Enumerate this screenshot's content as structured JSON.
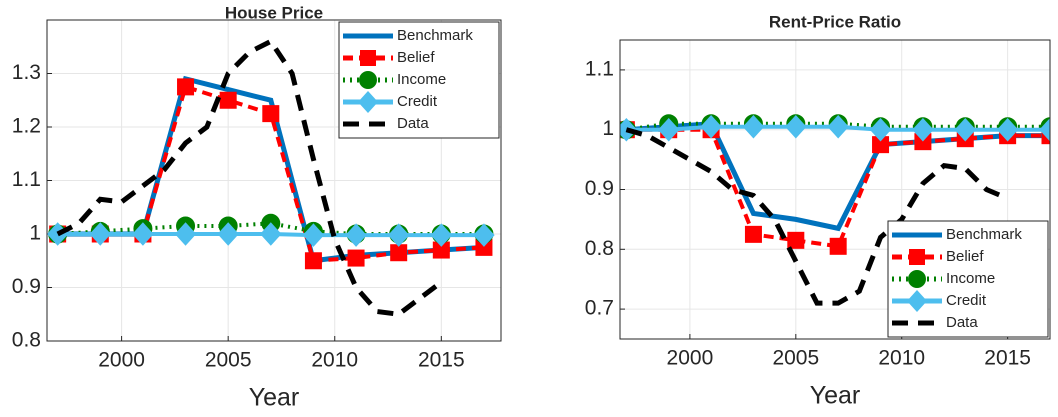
{
  "chart_data": [
    {
      "type": "line",
      "title": "House Price",
      "xlabel": "Year",
      "xlim": [
        1996.5,
        2017.8
      ],
      "xticks": [
        2000,
        2005,
        2010,
        2015
      ],
      "ylim": [
        0.8,
        1.4
      ],
      "yticks": [
        0.8,
        0.9,
        1,
        1.1,
        1.2,
        1.3
      ],
      "grid": true,
      "legend": "northeast",
      "series": [
        {
          "name": "Benchmark",
          "color": "#0072bd",
          "dash": "solid",
          "marker": "none",
          "x": [
            1997,
            1999,
            2001,
            2003,
            2005,
            2007,
            2009,
            2011,
            2013,
            2015,
            2017
          ],
          "values": [
            1.0,
            1.0,
            1.0,
            1.29,
            1.27,
            1.25,
            0.95,
            0.96,
            0.965,
            0.97,
            0.975
          ]
        },
        {
          "name": "Belief",
          "color": "#ff0000",
          "dash": "dashed",
          "marker": "square",
          "x": [
            1997,
            1999,
            2001,
            2003,
            2005,
            2007,
            2009,
            2011,
            2013,
            2015,
            2017
          ],
          "values": [
            1.0,
            1.0,
            1.0,
            1.275,
            1.25,
            1.225,
            0.95,
            0.955,
            0.965,
            0.97,
            0.975
          ]
        },
        {
          "name": "Income",
          "color": "#008000",
          "dash": "dotted",
          "marker": "circle",
          "x": [
            1997,
            1999,
            2001,
            2003,
            2005,
            2007,
            2009,
            2011,
            2013,
            2015,
            2017
          ],
          "values": [
            1.0,
            1.005,
            1.01,
            1.015,
            1.015,
            1.02,
            1.005,
            1.0,
            1.0,
            1.0,
            1.0
          ]
        },
        {
          "name": "Credit",
          "color": "#4dbeee",
          "dash": "solid",
          "marker": "diamond",
          "x": [
            1997,
            1999,
            2001,
            2003,
            2005,
            2007,
            2009,
            2011,
            2013,
            2015,
            2017
          ],
          "values": [
            1.0,
            1.0,
            1.0,
            1.0,
            1.0,
            1.0,
            0.998,
            0.998,
            0.998,
            0.998,
            0.998
          ]
        },
        {
          "name": "Data",
          "color": "#000000",
          "dash": "longdash",
          "marker": "none",
          "x": [
            1997,
            1998,
            1999,
            2000,
            2001,
            2002,
            2003,
            2004,
            2005,
            2006,
            2007,
            2008,
            2009,
            2010,
            2011,
            2012,
            2013,
            2014,
            2015
          ],
          "values": [
            1.0,
            1.02,
            1.065,
            1.06,
            1.09,
            1.12,
            1.17,
            1.2,
            1.3,
            1.34,
            1.36,
            1.3,
            1.14,
            0.99,
            0.9,
            0.855,
            0.85,
            0.88,
            0.91
          ]
        }
      ]
    },
    {
      "type": "line",
      "title": "Rent-Price Ratio",
      "xlabel": "Year",
      "xlim": [
        1996.7,
        2017
      ],
      "xticks": [
        2000,
        2005,
        2010,
        2015
      ],
      "ylim": [
        0.65,
        1.15
      ],
      "yticks": [
        0.7,
        0.8,
        0.9,
        1,
        1.1
      ],
      "grid": true,
      "legend": "southeast",
      "series": [
        {
          "name": "Benchmark",
          "color": "#0072bd",
          "dash": "solid",
          "marker": "none",
          "x": [
            1997,
            1999,
            2001,
            2003,
            2005,
            2007,
            2009,
            2011,
            2013,
            2015,
            2017
          ],
          "values": [
            1.0,
            1.005,
            1.01,
            0.86,
            0.85,
            0.835,
            0.975,
            0.98,
            0.985,
            0.99,
            0.99
          ]
        },
        {
          "name": "Belief",
          "color": "#ff0000",
          "dash": "dashed",
          "marker": "square",
          "x": [
            1997,
            1999,
            2001,
            2003,
            2005,
            2007,
            2009,
            2011,
            2013,
            2015,
            2017
          ],
          "values": [
            1.0,
            1.0,
            1.0,
            0.825,
            0.815,
            0.805,
            0.975,
            0.98,
            0.985,
            0.99,
            0.99
          ]
        },
        {
          "name": "Income",
          "color": "#008000",
          "dash": "dotted",
          "marker": "circle",
          "x": [
            1997,
            1999,
            2001,
            2003,
            2005,
            2007,
            2009,
            2011,
            2013,
            2015,
            2017
          ],
          "values": [
            1.0,
            1.01,
            1.01,
            1.01,
            1.01,
            1.01,
            1.005,
            1.005,
            1.005,
            1.005,
            1.005
          ]
        },
        {
          "name": "Credit",
          "color": "#4dbeee",
          "dash": "solid",
          "marker": "diamond",
          "x": [
            1997,
            1999,
            2001,
            2003,
            2005,
            2007,
            2009,
            2011,
            2013,
            2015,
            2017
          ],
          "values": [
            1.0,
            1.0,
            1.005,
            1.005,
            1.005,
            1.005,
            1.0,
            1.0,
            1.0,
            1.0,
            1.0
          ]
        },
        {
          "name": "Data",
          "color": "#000000",
          "dash": "longdash",
          "marker": "none",
          "x": [
            1997,
            1998,
            1999,
            2000,
            2001,
            2002,
            2003,
            2004,
            2005,
            2006,
            2007,
            2008,
            2009,
            2010,
            2011,
            2012,
            2013,
            2014,
            2015
          ],
          "values": [
            1.0,
            0.99,
            0.97,
            0.95,
            0.93,
            0.9,
            0.89,
            0.85,
            0.78,
            0.71,
            0.71,
            0.73,
            0.82,
            0.85,
            0.91,
            0.94,
            0.935,
            0.9,
            0.885
          ]
        }
      ]
    }
  ]
}
